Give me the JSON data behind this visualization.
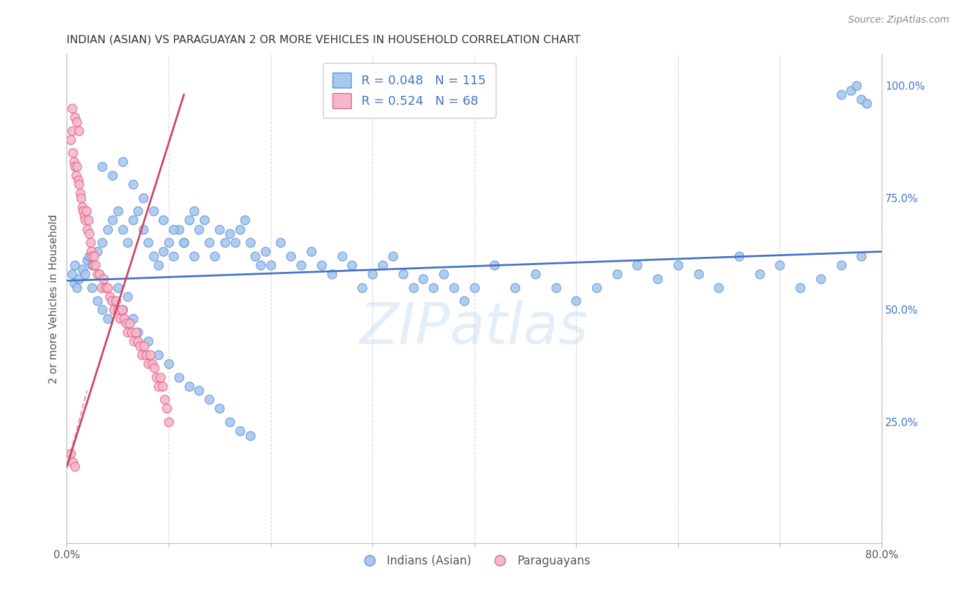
{
  "title": "INDIAN (ASIAN) VS PARAGUAYAN 2 OR MORE VEHICLES IN HOUSEHOLD CORRELATION CHART",
  "source": "Source: ZipAtlas.com",
  "ylabel": "2 or more Vehicles in Household",
  "watermark": "ZIPatlas",
  "xlim": [
    0.0,
    0.8
  ],
  "ylim": [
    -0.02,
    1.07
  ],
  "x_ticks": [
    0.0,
    0.1,
    0.2,
    0.3,
    0.4,
    0.5,
    0.6,
    0.7,
    0.8
  ],
  "x_tick_labels": [
    "0.0%",
    "",
    "",
    "",
    "",
    "",
    "",
    "",
    "80.0%"
  ],
  "y_ticks_right": [
    0.25,
    0.5,
    0.75,
    1.0
  ],
  "y_tick_labels_right": [
    "25.0%",
    "50.0%",
    "75.0%",
    "100.0%"
  ],
  "color_blue": "#a8c8f0",
  "color_pink": "#f5b8cb",
  "color_blue_edge": "#6090d0",
  "color_pink_edge": "#e06080",
  "color_blue_line": "#4472c4",
  "color_pink_line": "#d04060",
  "background_color": "#ffffff",
  "grid_color": "#d0d0d0",
  "title_color": "#333333",
  "source_color": "#888888",
  "right_axis_color": "#4472c4",
  "blue_scatter_x": [
    0.005,
    0.007,
    0.008,
    0.01,
    0.012,
    0.015,
    0.018,
    0.02,
    0.022,
    0.025,
    0.03,
    0.035,
    0.04,
    0.045,
    0.05,
    0.055,
    0.06,
    0.065,
    0.07,
    0.075,
    0.08,
    0.085,
    0.09,
    0.095,
    0.1,
    0.105,
    0.11,
    0.115,
    0.12,
    0.125,
    0.13,
    0.135,
    0.14,
    0.145,
    0.15,
    0.155,
    0.16,
    0.165,
    0.17,
    0.175,
    0.18,
    0.185,
    0.19,
    0.195,
    0.2,
    0.21,
    0.22,
    0.23,
    0.24,
    0.25,
    0.26,
    0.27,
    0.28,
    0.29,
    0.3,
    0.31,
    0.32,
    0.33,
    0.34,
    0.35,
    0.36,
    0.37,
    0.38,
    0.39,
    0.4,
    0.42,
    0.44,
    0.46,
    0.48,
    0.5,
    0.52,
    0.54,
    0.56,
    0.58,
    0.6,
    0.62,
    0.64,
    0.66,
    0.68,
    0.7,
    0.72,
    0.74,
    0.76,
    0.78,
    0.025,
    0.03,
    0.035,
    0.04,
    0.045,
    0.05,
    0.055,
    0.06,
    0.065,
    0.07,
    0.08,
    0.09,
    0.1,
    0.11,
    0.12,
    0.13,
    0.14,
    0.15,
    0.16,
    0.17,
    0.18,
    0.035,
    0.045,
    0.055,
    0.065,
    0.075,
    0.085,
    0.095,
    0.105,
    0.115,
    0.125,
    0.76,
    0.77,
    0.775,
    0.78,
    0.785
  ],
  "blue_scatter_y": [
    0.58,
    0.56,
    0.6,
    0.55,
    0.57,
    0.59,
    0.58,
    0.61,
    0.62,
    0.6,
    0.63,
    0.65,
    0.68,
    0.7,
    0.72,
    0.68,
    0.65,
    0.7,
    0.72,
    0.68,
    0.65,
    0.62,
    0.6,
    0.63,
    0.65,
    0.62,
    0.68,
    0.65,
    0.7,
    0.72,
    0.68,
    0.7,
    0.65,
    0.62,
    0.68,
    0.65,
    0.67,
    0.65,
    0.68,
    0.7,
    0.65,
    0.62,
    0.6,
    0.63,
    0.6,
    0.65,
    0.62,
    0.6,
    0.63,
    0.6,
    0.58,
    0.62,
    0.6,
    0.55,
    0.58,
    0.6,
    0.62,
    0.58,
    0.55,
    0.57,
    0.55,
    0.58,
    0.55,
    0.52,
    0.55,
    0.6,
    0.55,
    0.58,
    0.55,
    0.52,
    0.55,
    0.58,
    0.6,
    0.57,
    0.6,
    0.58,
    0.55,
    0.62,
    0.58,
    0.6,
    0.55,
    0.57,
    0.6,
    0.62,
    0.55,
    0.52,
    0.5,
    0.48,
    0.52,
    0.55,
    0.5,
    0.53,
    0.48,
    0.45,
    0.43,
    0.4,
    0.38,
    0.35,
    0.33,
    0.32,
    0.3,
    0.28,
    0.25,
    0.23,
    0.22,
    0.82,
    0.8,
    0.83,
    0.78,
    0.75,
    0.72,
    0.7,
    0.68,
    0.65,
    0.62,
    0.98,
    0.99,
    1.0,
    0.97,
    0.96
  ],
  "pink_scatter_x": [
    0.004,
    0.005,
    0.006,
    0.007,
    0.008,
    0.009,
    0.01,
    0.011,
    0.012,
    0.013,
    0.014,
    0.015,
    0.016,
    0.017,
    0.018,
    0.019,
    0.02,
    0.021,
    0.022,
    0.023,
    0.024,
    0.025,
    0.026,
    0.027,
    0.028,
    0.03,
    0.032,
    0.034,
    0.036,
    0.038,
    0.04,
    0.042,
    0.044,
    0.046,
    0.048,
    0.05,
    0.052,
    0.054,
    0.056,
    0.058,
    0.06,
    0.062,
    0.064,
    0.066,
    0.068,
    0.07,
    0.072,
    0.074,
    0.076,
    0.078,
    0.08,
    0.082,
    0.084,
    0.086,
    0.088,
    0.09,
    0.092,
    0.094,
    0.096,
    0.098,
    0.1,
    0.005,
    0.008,
    0.01,
    0.012,
    0.004,
    0.006,
    0.008
  ],
  "pink_scatter_y": [
    0.88,
    0.9,
    0.85,
    0.83,
    0.82,
    0.8,
    0.82,
    0.79,
    0.78,
    0.76,
    0.75,
    0.73,
    0.72,
    0.71,
    0.7,
    0.72,
    0.68,
    0.7,
    0.67,
    0.65,
    0.63,
    0.62,
    0.6,
    0.62,
    0.6,
    0.58,
    0.58,
    0.55,
    0.57,
    0.55,
    0.55,
    0.53,
    0.52,
    0.5,
    0.52,
    0.5,
    0.48,
    0.5,
    0.48,
    0.47,
    0.45,
    0.47,
    0.45,
    0.43,
    0.45,
    0.43,
    0.42,
    0.4,
    0.42,
    0.4,
    0.38,
    0.4,
    0.38,
    0.37,
    0.35,
    0.33,
    0.35,
    0.33,
    0.3,
    0.28,
    0.25,
    0.95,
    0.93,
    0.92,
    0.9,
    0.18,
    0.16,
    0.15
  ]
}
